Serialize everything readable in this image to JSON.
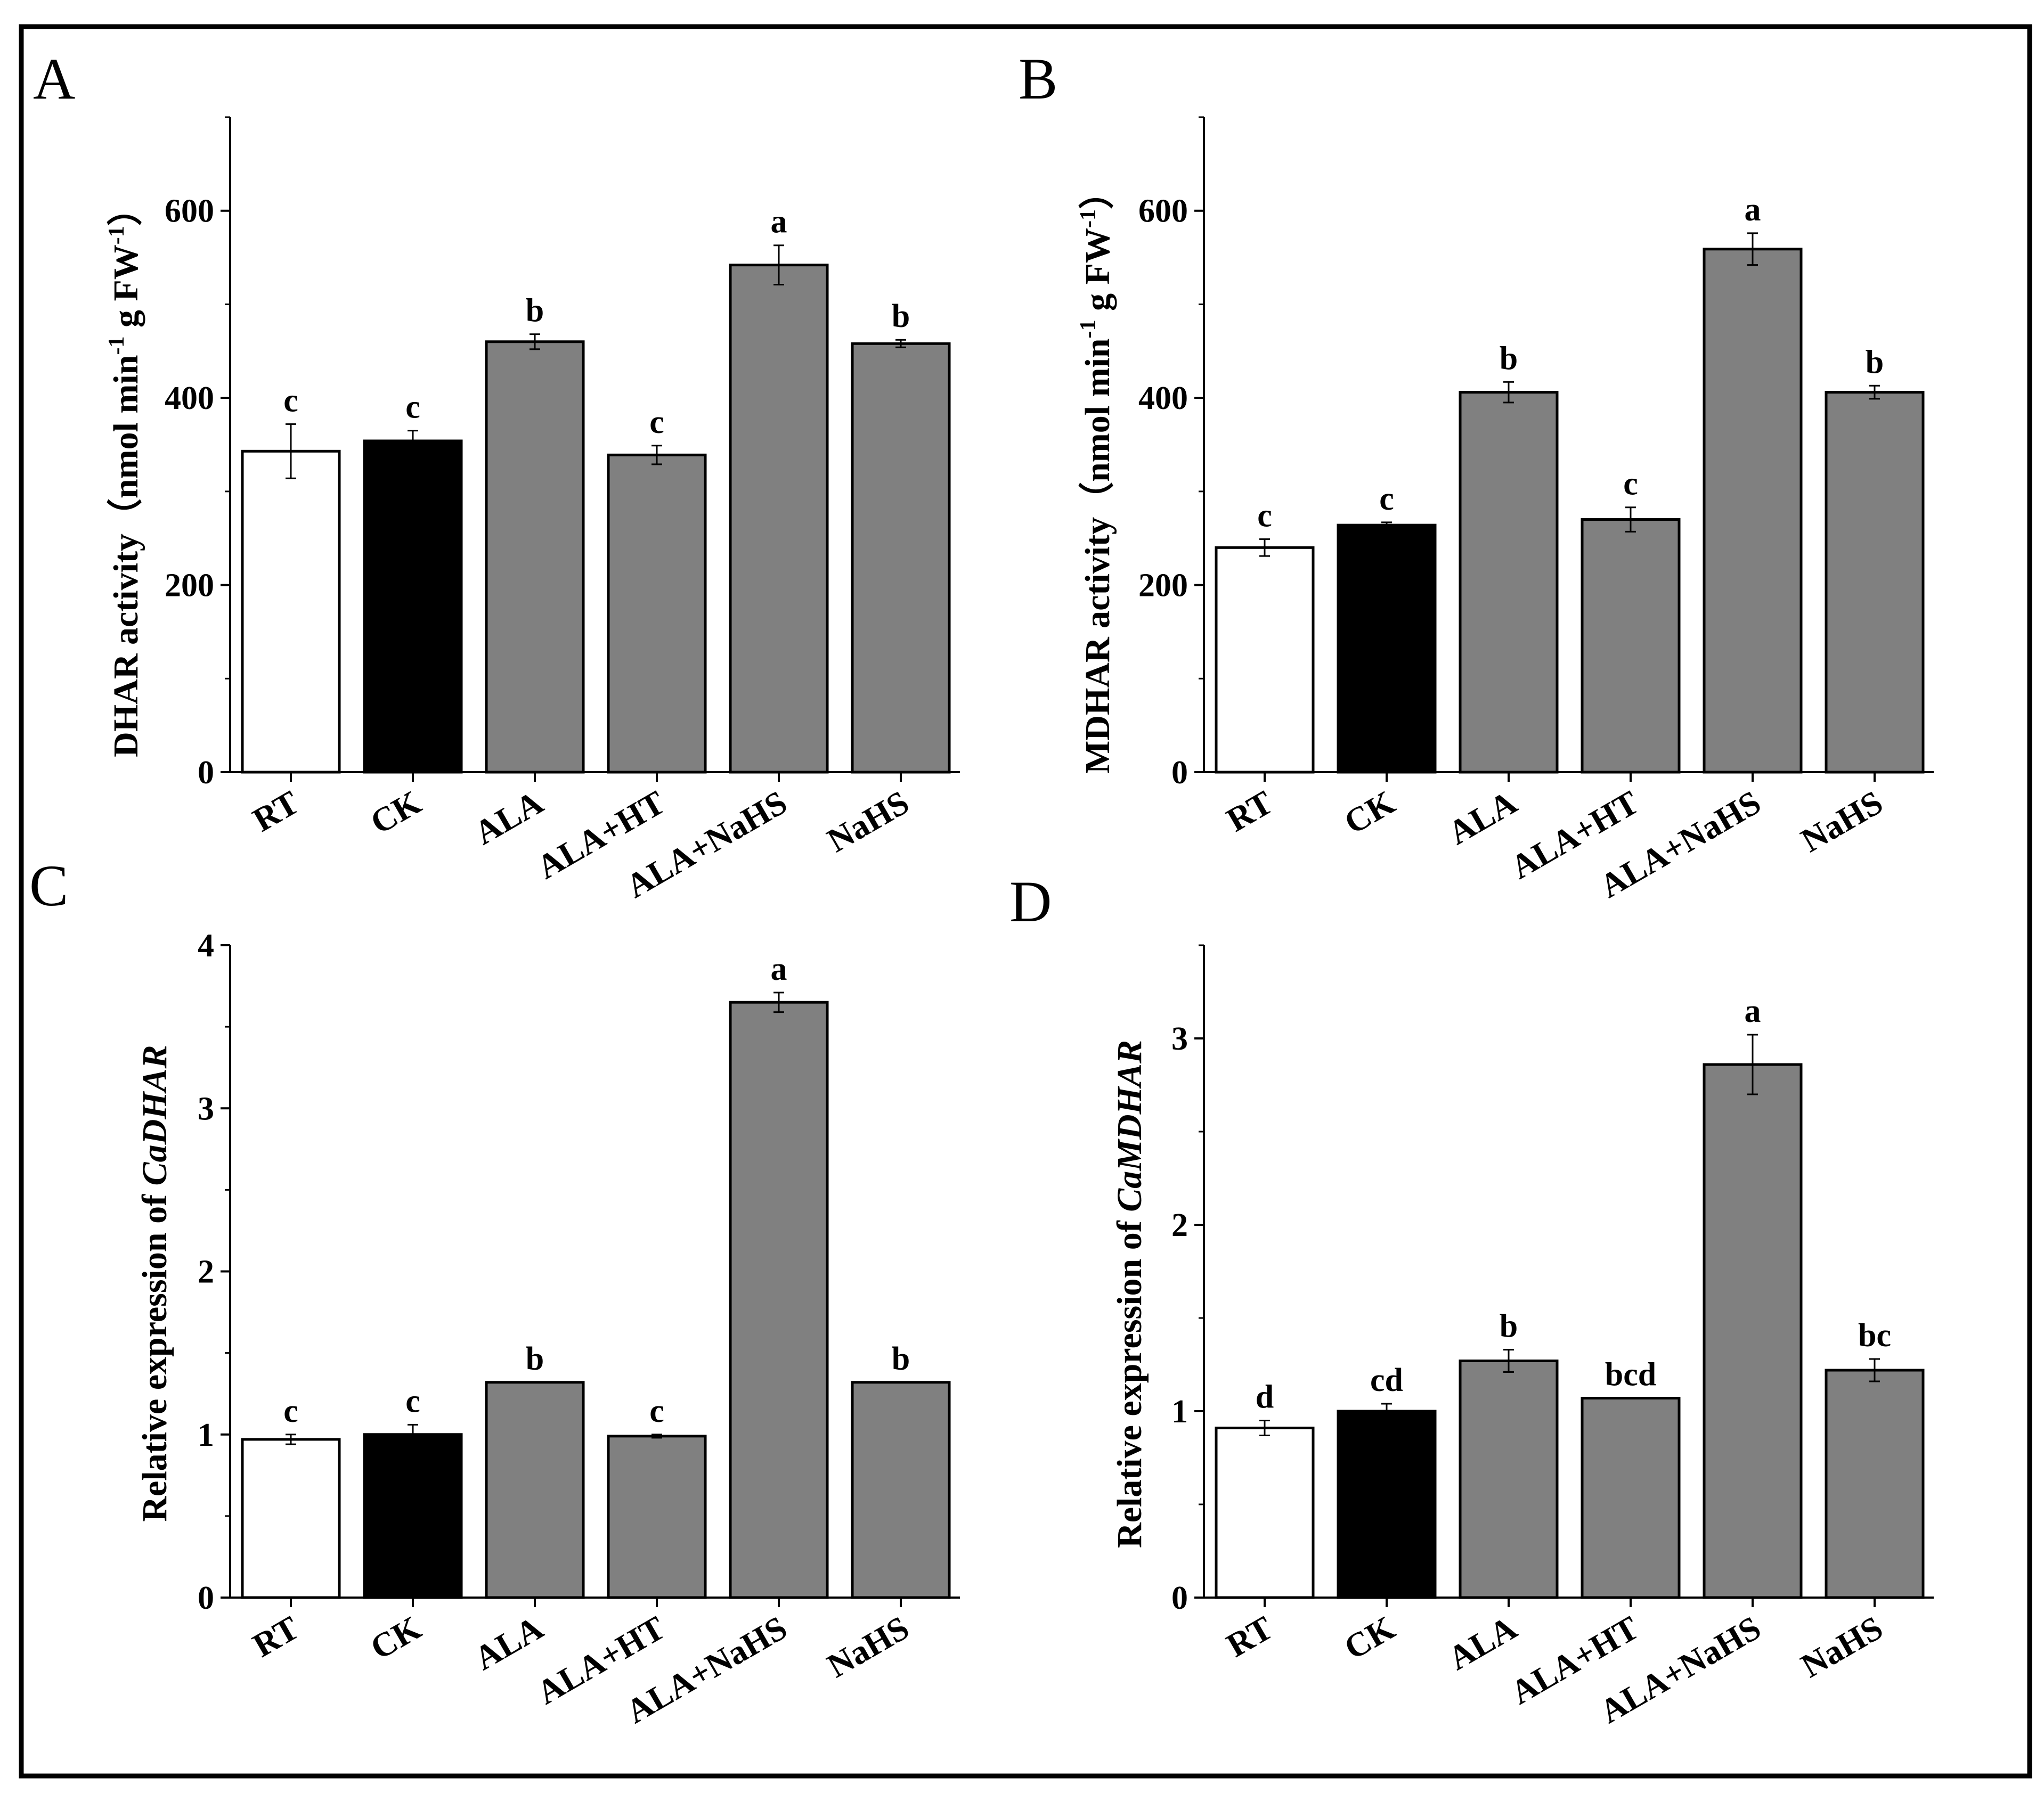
{
  "chart_data": [
    {
      "panel": "A",
      "type": "bar",
      "categories": [
        "RT",
        "CK",
        "ALA",
        "ALA+HT",
        "ALA+NaHS",
        "NaHS"
      ],
      "values": [
        343,
        354,
        460,
        339,
        542,
        458
      ],
      "errors": [
        29,
        11,
        8,
        10,
        21,
        4
      ],
      "significance": [
        "c",
        "c",
        "b",
        "c",
        "a",
        "b"
      ],
      "fills": [
        "#ffffff",
        "#000000",
        "#808080",
        "#808080",
        "#808080",
        "#808080"
      ],
      "ylabel_parts": [
        "DHAR activity（nmol min",
        "-1",
        " g FW",
        "-1",
        "）"
      ],
      "yticks": [
        "0",
        "200",
        "400",
        "600"
      ],
      "ytick_values": [
        0,
        200,
        400,
        600
      ],
      "ylim": [
        0,
        700
      ]
    },
    {
      "panel": "B",
      "type": "bar",
      "categories": [
        "RT",
        "CK",
        "ALA",
        "ALA+HT",
        "ALA+NaHS",
        "NaHS"
      ],
      "values": [
        240,
        264,
        406,
        270,
        559,
        406
      ],
      "errors": [
        9,
        3,
        11,
        13,
        17,
        7
      ],
      "significance": [
        "c",
        "c",
        "b",
        "c",
        "a",
        "b"
      ],
      "fills": [
        "#ffffff",
        "#000000",
        "#808080",
        "#808080",
        "#808080",
        "#808080"
      ],
      "ylabel_parts": [
        "MDHAR activity（nmol min",
        "-1",
        " g FW",
        "-1",
        "）"
      ],
      "yticks": [
        "0",
        "200",
        "400",
        "600"
      ],
      "ytick_values": [
        0,
        200,
        400,
        600
      ],
      "ylim": [
        0,
        700
      ]
    },
    {
      "panel": "C",
      "type": "bar",
      "categories": [
        "RT",
        "CK",
        "ALA",
        "ALA+HT",
        "ALA+NaHS",
        "NaHS"
      ],
      "values": [
        0.97,
        1.0,
        1.32,
        0.99,
        3.65,
        1.32
      ],
      "errors": [
        0.03,
        0.06,
        0.0,
        0.01,
        0.06,
        0.0
      ],
      "significance": [
        "c",
        "c",
        "b",
        "c",
        "a",
        "b"
      ],
      "fills": [
        "#ffffff",
        "#000000",
        "#808080",
        "#808080",
        "#808080",
        "#808080"
      ],
      "ylabel_prefix": "Relative expression of ",
      "ylabel_gene": "CaDHAR",
      "yticks": [
        "0",
        "1",
        "2",
        "3",
        "4"
      ],
      "ytick_values": [
        0,
        1,
        2,
        3,
        4
      ],
      "ylim": [
        0,
        4
      ]
    },
    {
      "panel": "D",
      "type": "bar",
      "categories": [
        "RT",
        "CK",
        "ALA",
        "ALA+HT",
        "ALA+NaHS",
        "NaHS"
      ],
      "values": [
        0.91,
        1.0,
        1.27,
        1.07,
        2.86,
        1.22
      ],
      "errors": [
        0.04,
        0.04,
        0.06,
        0.0,
        0.16,
        0.06
      ],
      "significance": [
        "d",
        "cd",
        "b",
        "bcd",
        "a",
        "bc"
      ],
      "fills": [
        "#ffffff",
        "#000000",
        "#808080",
        "#808080",
        "#808080",
        "#808080"
      ],
      "ylabel_prefix": "Relative expression of ",
      "ylabel_gene": "CaMDHAR",
      "yticks": [
        "0",
        "1",
        "2",
        "3"
      ],
      "ytick_values": [
        0,
        1,
        2,
        3
      ],
      "ylim": [
        0,
        3.5
      ]
    }
  ]
}
